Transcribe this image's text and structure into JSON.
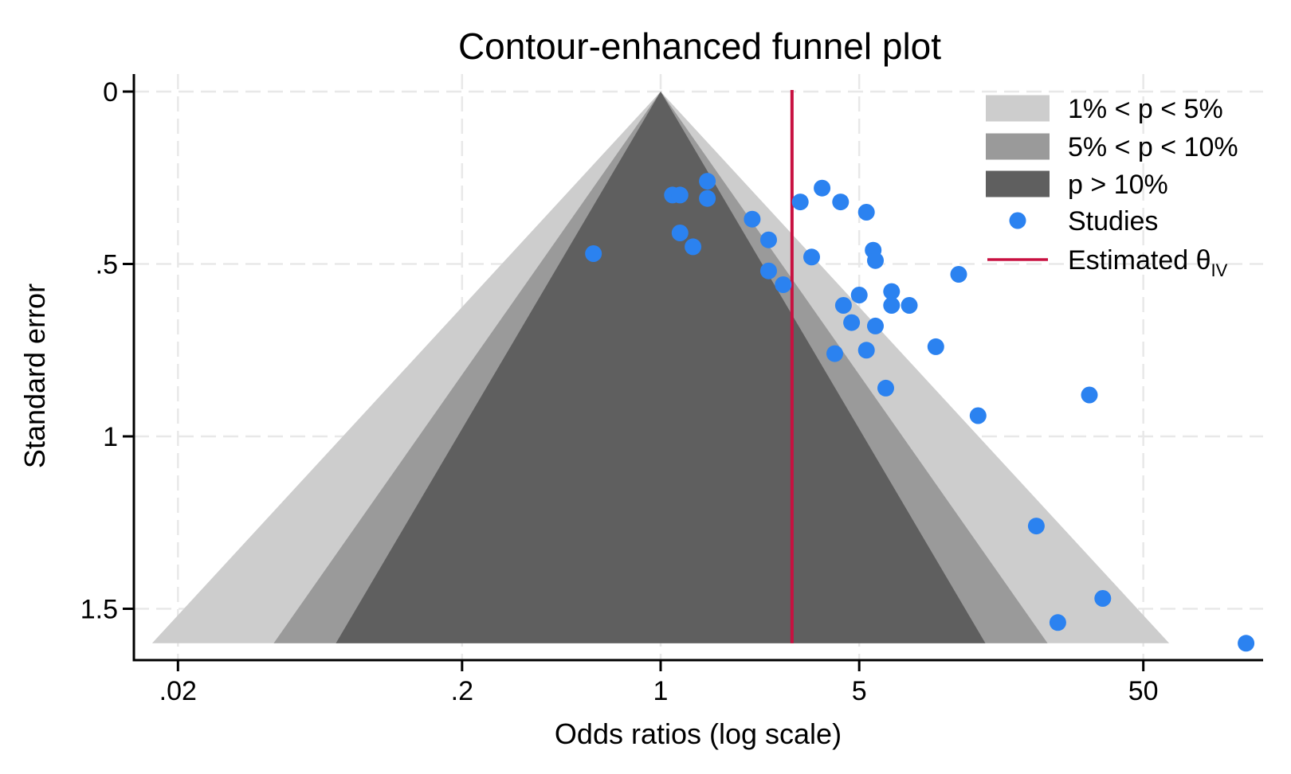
{
  "title": "Contour-enhanced funnel plot",
  "x_axis": {
    "label": "Odds ratios (log scale)",
    "scale": "log",
    "ticks": [
      0.02,
      0.2,
      1,
      5,
      50
    ],
    "tick_labels": [
      ".02",
      ".2",
      "1",
      "5",
      "50"
    ]
  },
  "y_axis": {
    "label": "Standard error",
    "ticks": [
      0,
      0.5,
      1,
      1.5
    ],
    "tick_labels": [
      "0",
      ".5",
      "1",
      "1.5"
    ],
    "inverted": true,
    "max_shaded_se": 1.6
  },
  "legend": {
    "items": [
      {
        "kind": "swatch",
        "color": "#cdcdcd",
        "label": "1% < p < 5%"
      },
      {
        "kind": "swatch",
        "color": "#9a9a9a",
        "label": "5% < p < 10%"
      },
      {
        "kind": "swatch",
        "color": "#5f5f5f",
        "label": "p > 10%"
      },
      {
        "kind": "marker",
        "color": "#2b82f0",
        "label": "Studies"
      },
      {
        "kind": "line",
        "color": "#c81040",
        "label": "Estimated θ",
        "label_subscript": "IV"
      }
    ]
  },
  "colors": {
    "contour_1_5": "#cdcdcd",
    "contour_5_10": "#9a9a9a",
    "contour_gt10": "#5f5f5f",
    "study_marker": "#2b82f0",
    "estimate_line": "#c81040",
    "gridline": "#e8e8e8",
    "axis": "#000000"
  },
  "chart_data": {
    "type": "scatter",
    "title": "Contour-enhanced funnel plot",
    "xlabel": "Odds ratios (log scale)",
    "ylabel": "Standard error",
    "x_scale": "log",
    "x_ticks": [
      0.02,
      0.2,
      1,
      5,
      50
    ],
    "y_ticks": [
      0,
      0.5,
      1,
      1.5
    ],
    "y_inverted": true,
    "grid": "dashed",
    "legend_position": "top-right",
    "se_max_shaded": 1.6,
    "estimated_theta_iv_or": 2.9,
    "contours": [
      {
        "label": "1% < p < 5%",
        "z": 2.576,
        "color": "#cdcdcd"
      },
      {
        "label": "5% < p < 10%",
        "z": 1.96,
        "color": "#9a9a9a"
      },
      {
        "label": "p > 10%",
        "z": 1.645,
        "color": "#5f5f5f"
      }
    ],
    "studies_or_se": [
      [
        1.46,
        0.26
      ],
      [
        1.1,
        0.3
      ],
      [
        1.17,
        0.3
      ],
      [
        1.46,
        0.31
      ],
      [
        3.1,
        0.32
      ],
      [
        3.7,
        0.28
      ],
      [
        4.3,
        0.32
      ],
      [
        5.3,
        0.35
      ],
      [
        2.1,
        0.37
      ],
      [
        1.17,
        0.41
      ],
      [
        1.3,
        0.45
      ],
      [
        2.4,
        0.43
      ],
      [
        0.58,
        0.47
      ],
      [
        5.6,
        0.46
      ],
      [
        5.7,
        0.49
      ],
      [
        3.4,
        0.48
      ],
      [
        2.4,
        0.52
      ],
      [
        2.7,
        0.56
      ],
      [
        5.0,
        0.59
      ],
      [
        6.5,
        0.58
      ],
      [
        6.5,
        0.62
      ],
      [
        7.5,
        0.62
      ],
      [
        4.4,
        0.62
      ],
      [
        4.7,
        0.67
      ],
      [
        5.7,
        0.68
      ],
      [
        4.1,
        0.76
      ],
      [
        5.3,
        0.75
      ],
      [
        9.3,
        0.74
      ],
      [
        11.2,
        0.53
      ],
      [
        6.2,
        0.86
      ],
      [
        13.1,
        0.94
      ],
      [
        32.3,
        0.88
      ],
      [
        21.0,
        1.26
      ],
      [
        36.0,
        1.47
      ],
      [
        25.0,
        1.54
      ],
      [
        115.0,
        1.6
      ]
    ]
  }
}
